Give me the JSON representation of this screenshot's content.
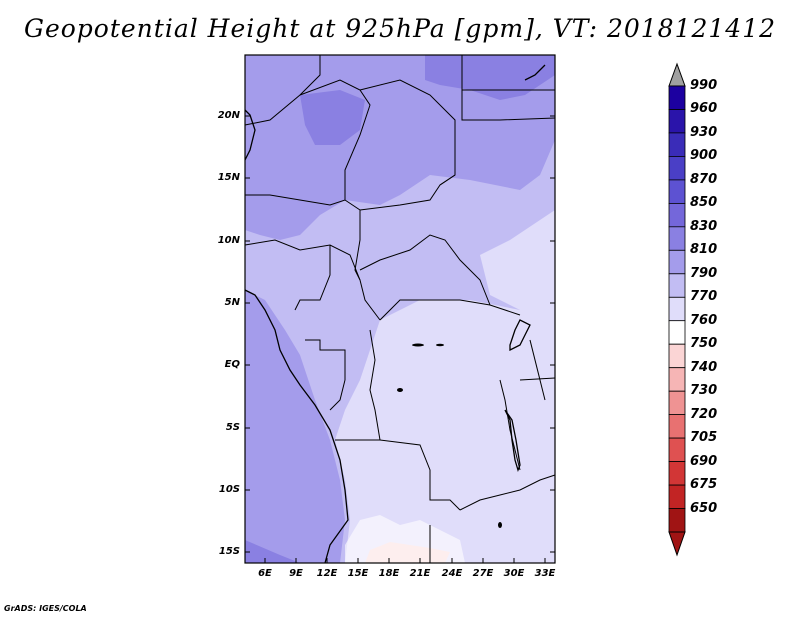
{
  "title": "Geopotential Height at 925hPa [gpm], VT: 2018121412",
  "latitude_labels": [
    "20N",
    "15N",
    "10N",
    "5N",
    "EQ",
    "5S",
    "10S",
    "15S"
  ],
  "longitude_labels": [
    "6E",
    "9E",
    "12E",
    "15E",
    "18E",
    "21E",
    "24E",
    "27E",
    "30E",
    "33E"
  ],
  "colorbar": {
    "labels": [
      "990",
      "960",
      "930",
      "900",
      "870",
      "850",
      "830",
      "810",
      "790",
      "770",
      "760",
      "750",
      "740",
      "730",
      "720",
      "705",
      "690",
      "675",
      "650"
    ],
    "colors": [
      "#1c00a0",
      "#2a14aa",
      "#3a2cb8",
      "#4a3fc6",
      "#5d52d2",
      "#7467da",
      "#8a80e2",
      "#a49ceb",
      "#c2bdf3",
      "#e0ddfa",
      "#ffffff",
      "#fbd5d5",
      "#f6b5b5",
      "#ef9393",
      "#e87171",
      "#df5151",
      "#d23636",
      "#c22424",
      "#a01414"
    ],
    "top_arrow_color": "#a0a0a0",
    "bottom_arrow_color": "#a01414"
  },
  "credit": "GrADS: IGES/COLA"
}
